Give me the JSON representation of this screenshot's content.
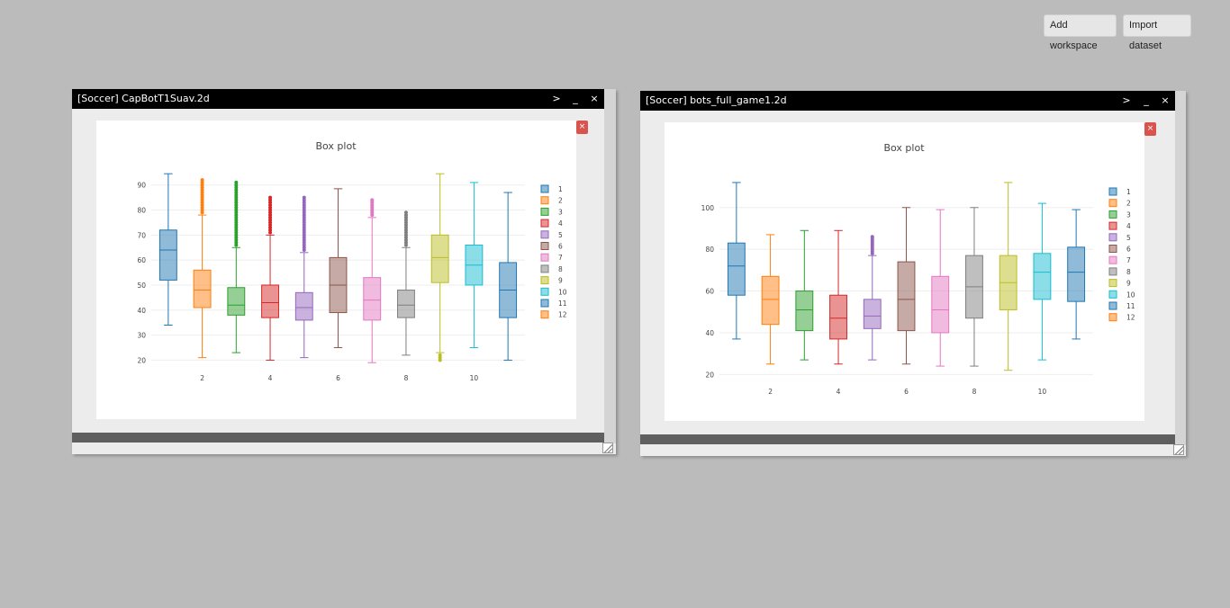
{
  "toolbar": {
    "add_workspace_label": "Add workspace",
    "import_dataset_label": "Import dataset"
  },
  "window_controls": {
    "expand": ">",
    "minimize": "_",
    "close": "×"
  },
  "plot_close_label": "×",
  "windows": [
    {
      "title": "[Soccer] CapBotT1Suav.2d",
      "chart_data": {
        "type": "box",
        "title": "Box plot",
        "ylim": [
          18,
          96
        ],
        "yticks": [
          20,
          30,
          40,
          50,
          60,
          70,
          80,
          90
        ],
        "xticks": [
          2,
          4,
          6,
          8,
          10
        ],
        "legend_position": "right",
        "series": [
          {
            "name": "1",
            "color": "#1f77b4",
            "min": 34,
            "q1": 52,
            "median": 64,
            "q3": 72,
            "max": 94.5,
            "outliers": []
          },
          {
            "name": "2",
            "color": "#ff7f0e",
            "min": 21,
            "q1": 41,
            "median": 48,
            "q3": 56,
            "max": 78,
            "outliers": [
              79,
              80,
              81,
              82,
              83,
              84,
              85,
              86,
              87,
              88,
              89,
              90,
              91,
              92
            ]
          },
          {
            "name": "3",
            "color": "#2ca02c",
            "min": 23,
            "q1": 38,
            "median": 42,
            "q3": 49,
            "max": 65,
            "outliers": [
              66,
              67,
              68,
              69,
              70,
              71,
              72,
              73,
              74,
              75,
              76,
              77,
              78,
              79,
              80,
              81,
              82,
              83,
              84,
              85,
              86,
              87,
              88,
              89,
              90,
              91
            ]
          },
          {
            "name": "4",
            "color": "#d62728",
            "min": 20,
            "q1": 37,
            "median": 43,
            "q3": 50,
            "max": 70,
            "outliers": [
              71,
              72,
              73,
              74,
              75,
              76,
              77,
              78,
              79,
              80,
              81,
              82,
              83,
              84,
              85
            ]
          },
          {
            "name": "5",
            "color": "#9467bd",
            "min": 21,
            "q1": 36,
            "median": 41,
            "q3": 47,
            "max": 63,
            "outliers": [
              64,
              65,
              66,
              67,
              68,
              69,
              70,
              71,
              72,
              73,
              74,
              75,
              76,
              77,
              78,
              79,
              80,
              81,
              82,
              83,
              84,
              85
            ]
          },
          {
            "name": "6",
            "color": "#8c564b",
            "min": 25,
            "q1": 39,
            "median": 50,
            "q3": 61,
            "max": 88.5,
            "outliers": []
          },
          {
            "name": "7",
            "color": "#e377c2",
            "min": 19,
            "q1": 36,
            "median": 44,
            "q3": 53,
            "max": 77,
            "outliers": [
              78,
              79,
              80,
              81,
              82,
              83,
              84
            ]
          },
          {
            "name": "8",
            "color": "#7f7f7f",
            "min": 22,
            "q1": 37,
            "median": 42,
            "q3": 48,
            "max": 65,
            "outliers": [
              66,
              67,
              68,
              69,
              70,
              71,
              72,
              73,
              74,
              75,
              76,
              77,
              78,
              79
            ]
          },
          {
            "name": "9",
            "color": "#bcbd22",
            "min": 23,
            "q1": 51,
            "median": 61,
            "q3": 70,
            "max": 94.5,
            "outliers": [
              20,
              21,
              22
            ]
          },
          {
            "name": "10",
            "color": "#17becf",
            "min": 25,
            "q1": 50,
            "median": 58,
            "q3": 66,
            "max": 91,
            "outliers": []
          },
          {
            "name": "11",
            "color": "#1f77b4",
            "min": 20,
            "q1": 37,
            "median": 48,
            "q3": 59,
            "max": 87,
            "outliers": []
          },
          {
            "name": "12",
            "color": "#ff7f0e",
            "min": null,
            "q1": null,
            "median": null,
            "q3": null,
            "max": null,
            "outliers": []
          }
        ]
      }
    },
    {
      "title": "[Soccer] bots_full_game1.2d",
      "chart_data": {
        "type": "box",
        "title": "Box plot",
        "ylim": [
          18,
          118
        ],
        "yticks": [
          20,
          40,
          60,
          80,
          100
        ],
        "xticks": [
          2,
          4,
          6,
          8,
          10
        ],
        "legend_position": "right",
        "series": [
          {
            "name": "1",
            "color": "#1f77b4",
            "min": 37,
            "q1": 58,
            "median": 72,
            "q3": 83,
            "max": 112,
            "outliers": []
          },
          {
            "name": "2",
            "color": "#ff7f0e",
            "min": 25,
            "q1": 44,
            "median": 56,
            "q3": 67,
            "max": 87,
            "outliers": []
          },
          {
            "name": "3",
            "color": "#2ca02c",
            "min": 27,
            "q1": 41,
            "median": 51,
            "q3": 60,
            "max": 89,
            "outliers": []
          },
          {
            "name": "4",
            "color": "#d62728",
            "min": 25,
            "q1": 37,
            "median": 47,
            "q3": 58,
            "max": 89,
            "outliers": []
          },
          {
            "name": "5",
            "color": "#9467bd",
            "min": 27,
            "q1": 42,
            "median": 48,
            "q3": 56,
            "max": 77,
            "outliers": [
              78,
              79,
              80,
              81,
              82,
              83,
              84,
              85,
              86
            ]
          },
          {
            "name": "6",
            "color": "#8c564b",
            "min": 25,
            "q1": 41,
            "median": 56,
            "q3": 74,
            "max": 100,
            "outliers": []
          },
          {
            "name": "7",
            "color": "#e377c2",
            "min": 24,
            "q1": 40,
            "median": 51,
            "q3": 67,
            "max": 99,
            "outliers": []
          },
          {
            "name": "8",
            "color": "#7f7f7f",
            "min": 24,
            "q1": 47,
            "median": 62,
            "q3": 77,
            "max": 100,
            "outliers": []
          },
          {
            "name": "9",
            "color": "#bcbd22",
            "min": 22,
            "q1": 51,
            "median": 64,
            "q3": 77,
            "max": 112,
            "outliers": []
          },
          {
            "name": "10",
            "color": "#17becf",
            "min": 27,
            "q1": 56,
            "median": 69,
            "q3": 78,
            "max": 102,
            "outliers": []
          },
          {
            "name": "11",
            "color": "#1f77b4",
            "min": 37,
            "q1": 55,
            "median": 69,
            "q3": 81,
            "max": 99,
            "outliers": []
          },
          {
            "name": "12",
            "color": "#ff7f0e",
            "min": null,
            "q1": null,
            "median": null,
            "q3": null,
            "max": null,
            "outliers": []
          }
        ]
      }
    }
  ]
}
